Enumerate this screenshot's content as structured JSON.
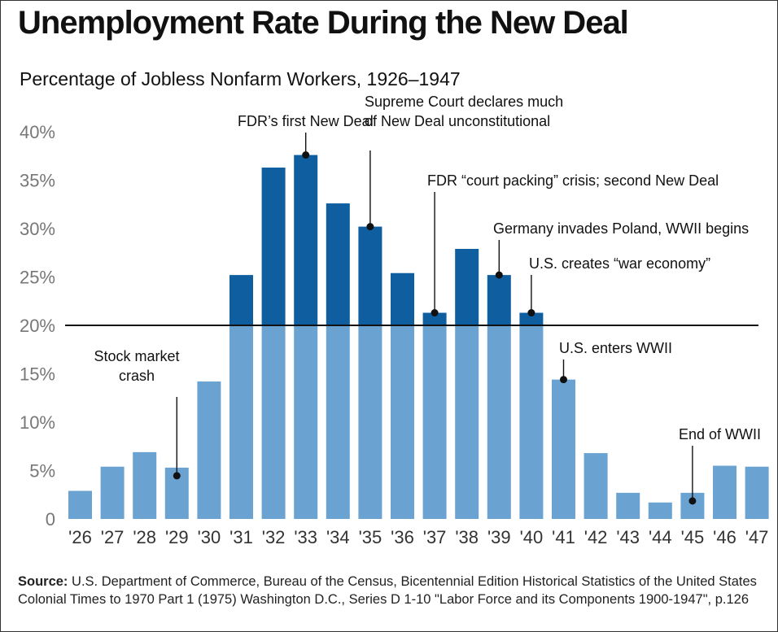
{
  "title": "Unemployment Rate During the New Deal",
  "subtitle": "Percentage of Jobless Nonfarm Workers, 1926–1947",
  "source_label": "Source:",
  "source_text": "U.S. Department of Commerce, Bureau of the Census, Bicentennial Edition Historical Statistics of the United States Colonial Times to 1970 Part 1 (1975) Washington D.C., Series D 1-10 \"Labor Force and its Components 1900-1947\", p.126",
  "colors": {
    "light_bar": "#6aa3d2",
    "dark_bar": "#0f5fa0",
    "reference_line": "#111111"
  },
  "chart_data": {
    "type": "bar",
    "categories": [
      "'26",
      "'27",
      "'28",
      "'29",
      "'30",
      "'31",
      "'32",
      "'33",
      "'34",
      "'35",
      "'36",
      "'37",
      "'38",
      "'39",
      "'40",
      "'41",
      "'42",
      "'43",
      "'44",
      "'45",
      "'46",
      "'47"
    ],
    "values": [
      2.9,
      5.4,
      6.9,
      5.3,
      14.2,
      25.2,
      36.3,
      37.6,
      32.6,
      30.2,
      25.4,
      21.3,
      27.9,
      25.2,
      21.3,
      14.4,
      6.8,
      2.7,
      1.7,
      2.7,
      5.5,
      5.4
    ],
    "ylim": [
      0,
      40
    ],
    "ytick_labels": [
      "0",
      "5%",
      "10%",
      "15%",
      "20%",
      "25%",
      "30%",
      "35%",
      "40%"
    ],
    "yticks": [
      0,
      5,
      10,
      15,
      20,
      25,
      30,
      35,
      40
    ],
    "reference_line": 20,
    "annotations": [
      {
        "year": "'29",
        "lines": [
          "Stock market",
          "crash"
        ]
      },
      {
        "year": "'33",
        "lines": [
          "FDR’s first New Deal"
        ]
      },
      {
        "year": "'35",
        "lines": [
          "Supreme Court declares much",
          "of New Deal unconstitutional"
        ]
      },
      {
        "year": "'37",
        "lines": [
          "FDR “court packing” crisis; second New Deal"
        ]
      },
      {
        "year": "'39",
        "lines": [
          "Germany invades Poland, WWII begins"
        ]
      },
      {
        "year": "'40",
        "lines": [
          "U.S. creates “war economy”"
        ]
      },
      {
        "year": "'41",
        "lines": [
          "U.S. enters WWII"
        ]
      },
      {
        "year": "'45",
        "lines": [
          "End of WWII"
        ]
      }
    ]
  }
}
